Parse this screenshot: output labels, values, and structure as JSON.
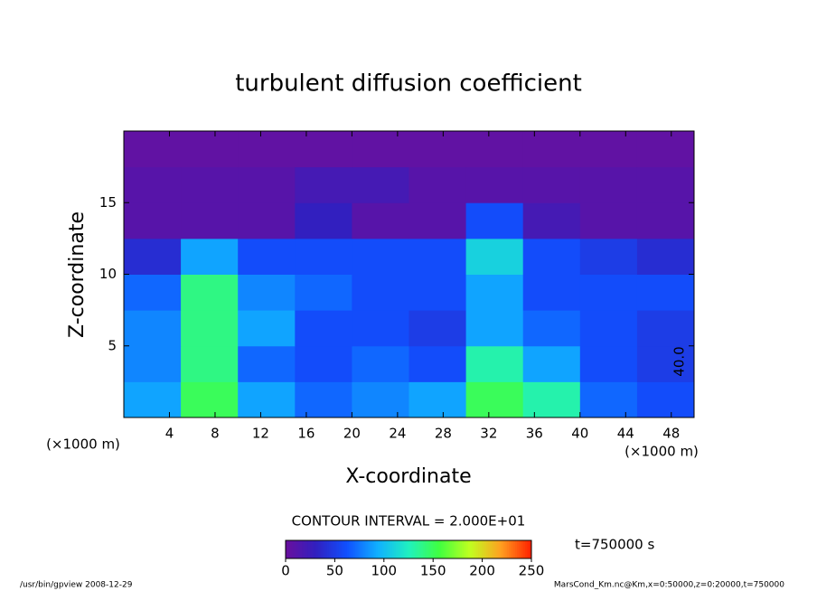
{
  "chart_data": {
    "type": "heatmap",
    "title": "turbulent diffusion coefficient",
    "xlabel": "X-coordinate",
    "ylabel": "Z-coordinate",
    "xunit_left": "(×1000 m)",
    "xunit_right": "(×1000 m)",
    "contour_interval": "CONTOUR INTERVAL = 2.000E+01",
    "time_label": "t=750000 s",
    "footer_left": "/usr/bin/gpview  2008-12-29",
    "footer_right": "MarsCond_Km.nc@Km,x=0:50000,z=0:20000,t=750000",
    "contour_annotation": "40.0",
    "x": [
      2.5,
      7.5,
      12.5,
      17.5,
      22.5,
      27.5,
      32.5,
      37.5,
      42.5,
      47.5
    ],
    "y": [
      1.25,
      3.75,
      6.25,
      8.75,
      11.25,
      13.75,
      16.25,
      18.75
    ],
    "z": [
      [
        90,
        150,
        90,
        70,
        80,
        90,
        150,
        130,
        70,
        60
      ],
      [
        80,
        140,
        70,
        60,
        70,
        60,
        130,
        90,
        60,
        50
      ],
      [
        80,
        140,
        90,
        60,
        60,
        50,
        90,
        70,
        60,
        50
      ],
      [
        70,
        140,
        80,
        70,
        60,
        60,
        90,
        60,
        60,
        60
      ],
      [
        40,
        90,
        60,
        60,
        60,
        60,
        110,
        60,
        50,
        40
      ],
      [
        10,
        10,
        10,
        30,
        10,
        10,
        60,
        20,
        10,
        10
      ],
      [
        10,
        10,
        10,
        20,
        20,
        10,
        10,
        10,
        10,
        10
      ],
      [
        5,
        5,
        5,
        5,
        5,
        5,
        5,
        5,
        5,
        5
      ]
    ],
    "xlim": [
      0,
      50
    ],
    "ylim": [
      0,
      20
    ],
    "xticks": [
      4,
      8,
      12,
      16,
      20,
      24,
      28,
      32,
      36,
      40,
      44,
      48
    ],
    "yticks": [
      5,
      10,
      15
    ],
    "clim": [
      0,
      250
    ],
    "cticks": [
      0,
      50,
      100,
      150,
      200,
      250
    ],
    "colormap": [
      "#6a0f9e",
      "#3020c0",
      "#1050ff",
      "#10b0ff",
      "#20f0c0",
      "#40ff40",
      "#c0ff20",
      "#ffa020",
      "#ff2000"
    ]
  }
}
